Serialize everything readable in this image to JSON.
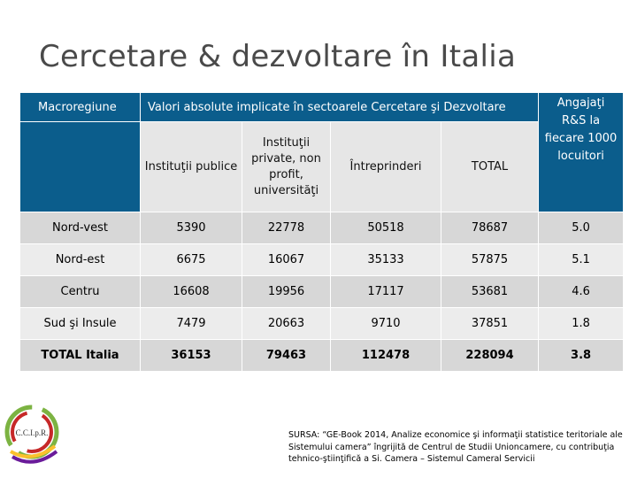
{
  "title": "Cercetare & dezvoltare în Italia",
  "table": {
    "header": {
      "region": "Macroregiune",
      "values_group": "Valori absolute implicate în sectoarele Cercetare şi Dezvoltare",
      "staff": "Angajaţi R&S la fiecare 1000 locuitori"
    },
    "subheaders": [
      "Instituţii publice",
      "Instituţii private, non profit, universităţi",
      "Întreprinderi",
      "TOTAL"
    ],
    "rows": [
      {
        "region": "Nord-vest",
        "public": "5390",
        "private": "22778",
        "enterprises": "50518",
        "total": "78687",
        "staff": "5.0"
      },
      {
        "region": "Nord-est",
        "public": "6675",
        "private": "16067",
        "enterprises": "35133",
        "total": "57875",
        "staff": "5.1"
      },
      {
        "region": "Centru",
        "public": "16608",
        "private": "19956",
        "enterprises": "17117",
        "total": "53681",
        "staff": "4.6"
      },
      {
        "region": "Sud şi Insule",
        "public": "7479",
        "private": "20663",
        "enterprises": "9710",
        "total": "37851",
        "staff": "1.8"
      },
      {
        "region": "TOTAL Italia",
        "public": "36153",
        "private": "79463",
        "enterprises": "112478",
        "total": "228094",
        "staff": "3.8"
      }
    ]
  },
  "logo": {
    "text": "C.C.I.p.R."
  },
  "source": "SURSA: “GE-Book 2014, Analize economice şi informaţii statistice teritoriale ale Sistemului camera” îngrijită de Centrul de Studii Unioncamere, cu contribuţia tehnico-ştiinţifică a Si. Camera – Sistemul Cameral Servicii",
  "colors": {
    "header": "#0b5d8c",
    "row_dark": "#d7d7d7",
    "row_light": "#ececec"
  }
}
